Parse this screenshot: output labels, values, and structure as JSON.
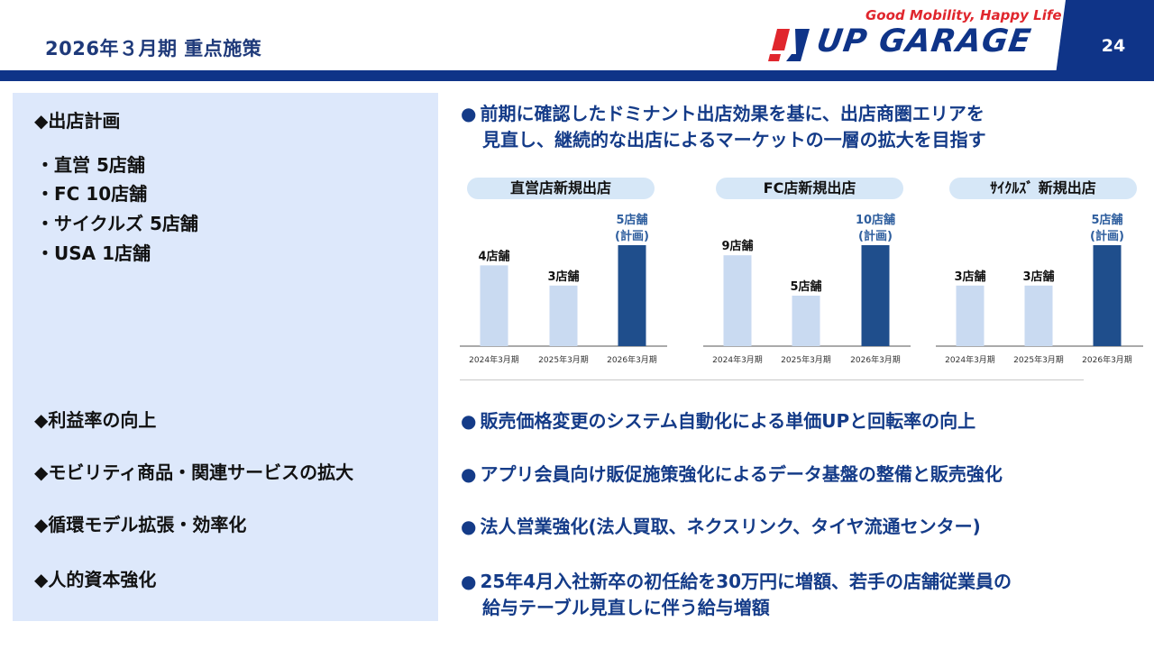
{
  "header": {
    "title": "2026年３月期 重点施策",
    "page_number": "24",
    "tagline": "Good Mobility, Happy Life",
    "logo_text": "UP GARAGE"
  },
  "left": {
    "sections": [
      "◆出店計画",
      "◆利益率の向上",
      "◆モビリティ商品・関連サービスの拡大",
      "◆循環モデル拡張・効率化",
      "◆人的資本強化"
    ],
    "plan_items": [
      "・直営 5店舗",
      "・FC 10店舗",
      "・サイクルズ 5店舗",
      "・USA 1店舗"
    ]
  },
  "right": {
    "dot": "●",
    "headline_line1": "前期に確認したドミナント出店効果を基に、出店商圏エリアを",
    "headline_line2": "見直し、継続的な出店によるマーケットの一層の拡大を目指す",
    "items": [
      "販売価格変更のシステム自動化による単価UPと回転率の向上",
      "アプリ会員向け販促施策強化によるデータ基盤の整備と販売強化",
      "法人営業強化(法人買取、ネクスリンク、タイヤ流通センター)"
    ],
    "last_line1": "25年4月入社新卒の初任給を30万円に増額、若手の店舗従業員の",
    "last_line2": "給与テーブル見直しに伴う給与増額"
  },
  "colors": {
    "past_bar": "#c9daf1",
    "plan_bar": "#1f4e8c",
    "plan_label": "#2e5e9e",
    "header_band": "#0f3488",
    "accent_red": "#e0262d"
  },
  "chart_data": [
    {
      "type": "bar",
      "title": "直営店新規出店",
      "categories": [
        "2024年3月期",
        "2025年3月期",
        "2026年3月期"
      ],
      "values": [
        4,
        3,
        5
      ],
      "labels": [
        "4店舗",
        "3店舗",
        "5店舗\n(計画)"
      ],
      "highlight_index": 2
    },
    {
      "type": "bar",
      "title": "FC店新規出店",
      "categories": [
        "2024年3月期",
        "2025年3月期",
        "2026年3月期"
      ],
      "values": [
        9,
        5,
        10
      ],
      "labels": [
        "9店舗",
        "5店舗",
        "10店舗\n(計画)"
      ],
      "highlight_index": 2
    },
    {
      "type": "bar",
      "title": "ｻｲｸﾙｽﾞ 新規出店",
      "categories": [
        "2024年3月期",
        "2025年3月期",
        "2026年3月期"
      ],
      "values": [
        3,
        3,
        5
      ],
      "labels": [
        "3店舗",
        "3店舗",
        "5店舗\n(計画)"
      ],
      "highlight_index": 2
    }
  ]
}
